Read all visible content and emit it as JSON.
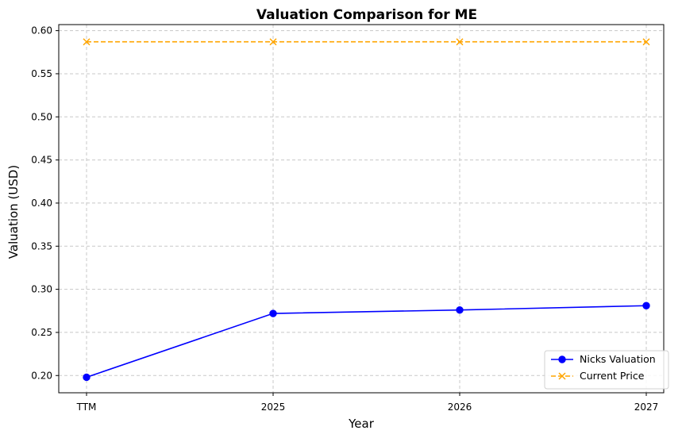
{
  "chart_data": {
    "type": "line",
    "title": "Valuation Comparison for ME",
    "xlabel": "Year",
    "ylabel": "Valuation (USD)",
    "categories": [
      "TTM",
      "2025",
      "2026",
      "2027"
    ],
    "ylim": [
      0.18,
      0.607
    ],
    "yticks": [
      0.2,
      0.25,
      0.3,
      0.35,
      0.4,
      0.45,
      0.5,
      0.55,
      0.6
    ],
    "ytick_labels": [
      "0.20",
      "0.25",
      "0.30",
      "0.35",
      "0.40",
      "0.45",
      "0.50",
      "0.55",
      "0.60"
    ],
    "grid": true,
    "legend_position": "lower-right",
    "series": [
      {
        "name": "Nicks Valuation",
        "values": [
          0.198,
          0.272,
          0.276,
          0.281
        ],
        "color": "#0000ff",
        "line_style": "solid",
        "marker": "circle"
      },
      {
        "name": "Current Price",
        "values": [
          0.587,
          0.587,
          0.587,
          0.587
        ],
        "color": "#ffa500",
        "line_style": "dashed",
        "marker": "x"
      }
    ]
  }
}
